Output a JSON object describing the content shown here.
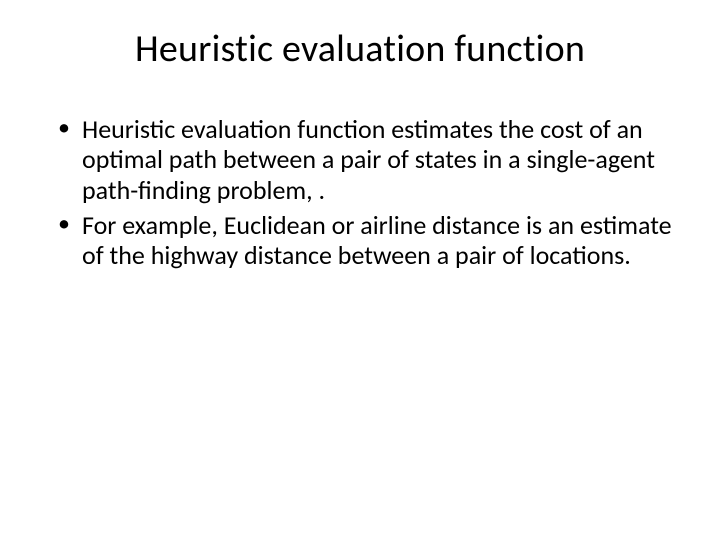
{
  "slide": {
    "title": "Heuristic evaluation function",
    "title_fontsize": 38,
    "title_color": "#000000",
    "body_fontsize": 26,
    "body_color": "#000000",
    "background_color": "#ffffff",
    "bullets": [
      "Heuristic evaluation function estimates the cost of an optimal path between a pair of states in a single-agent path-finding problem, .",
      "For example, Euclidean or airline distance is an estimate of the highway distance between a pair of locations."
    ]
  }
}
